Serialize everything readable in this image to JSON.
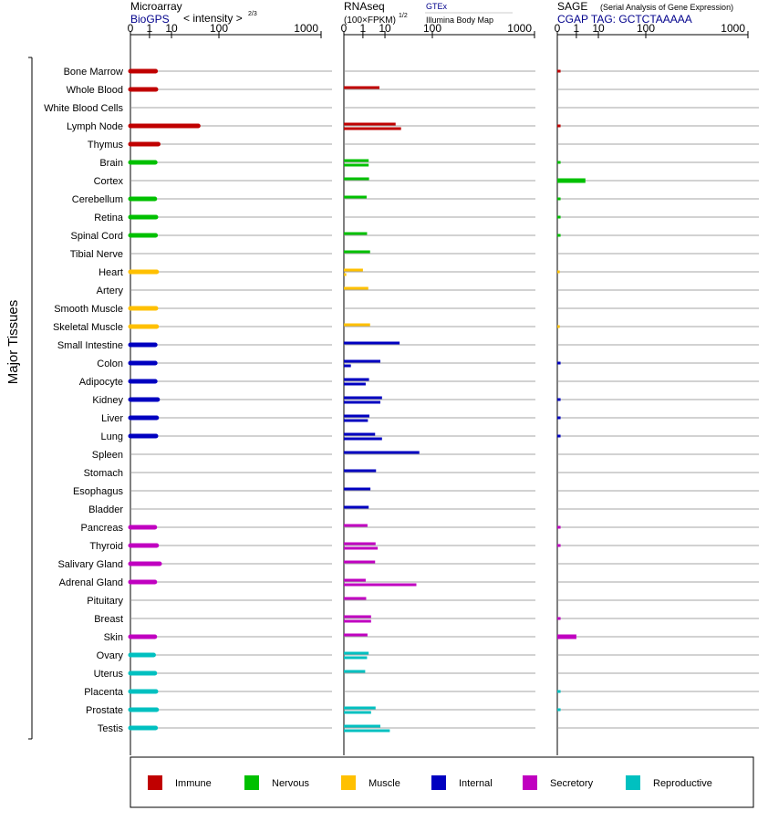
{
  "side_label": "Major Tissues",
  "panels": [
    {
      "key": "microarray",
      "title": "Microarray",
      "subtitle": "BioGPS",
      "unit": "< intensity >",
      "unit_exp": "2/3",
      "source_lines": []
    },
    {
      "key": "rnaseq",
      "title": "RNAseq",
      "subtitle": "",
      "unit": "(100×FPKM)",
      "unit_exp": "1/2",
      "source_lines": [
        "GTEx",
        "Illumina Body Map"
      ]
    },
    {
      "key": "sage",
      "title": "SAGE",
      "subtitle": "CGAP TAG: GCTCTAAAAA",
      "unit": "(Serial Analysis of Gene Expression)",
      "unit_exp": "",
      "source_lines": []
    }
  ],
  "axis_ticks": [
    "0",
    "1",
    "10",
    "100",
    "1000"
  ],
  "legend": [
    {
      "name": "Immune",
      "color": "#c00000"
    },
    {
      "name": "Nervous",
      "color": "#00c000"
    },
    {
      "name": "Muscle",
      "color": "#ffc000"
    },
    {
      "name": "Internal",
      "color": "#0000c0"
    },
    {
      "name": "Secretory",
      "color": "#c000c0"
    },
    {
      "name": "Reproductive",
      "color": "#00c0c0"
    }
  ],
  "chart_data": {
    "type": "bar",
    "scale": "power 1/3 (ticks 0, 1, 10, 100, 1000)",
    "xlim": [
      0,
      1000
    ],
    "categories": [
      "Bone Marrow",
      "Whole Blood",
      "White Blood Cells",
      "Lymph Node",
      "Thymus",
      "Brain",
      "Cortex",
      "Cerebellum",
      "Retina",
      "Spinal Cord",
      "Tibial Nerve",
      "Heart",
      "Artery",
      "Smooth Muscle",
      "Skeletal Muscle",
      "Small Intestine",
      "Colon",
      "Adipocyte",
      "Kidney",
      "Liver",
      "Lung",
      "Spleen",
      "Stomach",
      "Esophagus",
      "Bladder",
      "Pancreas",
      "Thyroid",
      "Salivary Gland",
      "Adrenal Gland",
      "Pituitary",
      "Breast",
      "Skin",
      "Ovary",
      "Uterus",
      "Placenta",
      "Prostate",
      "Testis"
    ],
    "groups": [
      "Immune",
      "Immune",
      "Immune",
      "Immune",
      "Immune",
      "Nervous",
      "Nervous",
      "Nervous",
      "Nervous",
      "Nervous",
      "Nervous",
      "Muscle",
      "Muscle",
      "Muscle",
      "Muscle",
      "Internal",
      "Internal",
      "Internal",
      "Internal",
      "Internal",
      "Internal",
      "Internal",
      "Internal",
      "Internal",
      "Internal",
      "Secretory",
      "Secretory",
      "Secretory",
      "Secretory",
      "Secretory",
      "Secretory",
      "Secretory",
      "Reproductive",
      "Reproductive",
      "Reproductive",
      "Reproductive",
      "Reproductive"
    ],
    "series": [
      {
        "name": "Microarray",
        "values": [
          [
            2.3
          ],
          [
            2.4
          ],
          [],
          [
            45
          ],
          [
            3.1
          ],
          [
            2.2
          ],
          [],
          [
            2.1
          ],
          [
            2.4
          ],
          [
            2.3
          ],
          [],
          [
            2.6
          ],
          [],
          [
            2.4
          ],
          [
            2.6
          ],
          [
            2.2
          ],
          [
            2.2
          ],
          [
            2.2
          ],
          [
            2.9
          ],
          [
            2.6
          ],
          [
            2.4
          ],
          [],
          [],
          [],
          [],
          [
            2.1
          ],
          [
            2.6
          ],
          [
            3.6
          ],
          [
            2.1
          ],
          [],
          [],
          [
            2.1
          ],
          [
            1.8
          ],
          [
            2.1
          ],
          [
            2.4
          ],
          [
            2.6
          ],
          [
            2.3
          ]
        ]
      },
      {
        "name": "RNAseq",
        "values": [
          [],
          [
            6.5
          ],
          [],
          [
            20,
            27
          ],
          [],
          [
            2.2,
            2.2
          ],
          [
            2.3
          ],
          [
            1.7
          ],
          [],
          [
            1.8
          ],
          [
            2.6
          ],
          [
            1.0,
            0.002
          ],
          [
            2.1
          ],
          [],
          [
            2.6
          ],
          [
            25
          ],
          [
            7,
            0.05
          ],
          [
            2.3,
            1.5
          ],
          [
            8,
            7
          ],
          [
            2.4,
            2.0
          ],
          [
            4.4,
            8
          ],
          [
            62
          ],
          [
            4.8
          ],
          [
            2.7
          ],
          [
            2.2
          ],
          [
            1.9
          ],
          [
            4.6,
            5.6
          ],
          [
            4.4
          ],
          [
            1.5,
            55
          ],
          [
            1.6
          ],
          [
            2.9,
            2.9
          ],
          [
            1.9
          ],
          [
            2.2,
            1.8
          ],
          [
            1.4
          ],
          [],
          [
            4.6,
            2.9
          ],
          [
            7,
            14
          ]
        ]
      },
      {
        "name": "SAGE",
        "values": [
          [
            0.005
          ],
          [],
          [],
          [
            0.005
          ],
          [],
          [
            0.005
          ],
          [
            3.2
          ],
          [
            0.005
          ],
          [
            0.005
          ],
          [
            0.005
          ],
          [],
          [
            0.002
          ],
          [],
          [],
          [
            0.002
          ],
          [],
          [
            0.005
          ],
          [],
          [
            0.005
          ],
          [
            0.005
          ],
          [
            0.005
          ],
          [],
          [],
          [],
          [],
          [
            0.005
          ],
          [
            0.005
          ],
          [],
          [],
          [],
          [
            0.005
          ],
          [
            1.0
          ],
          [],
          [],
          [
            0.005
          ],
          [
            0.005
          ],
          []
        ]
      }
    ]
  }
}
